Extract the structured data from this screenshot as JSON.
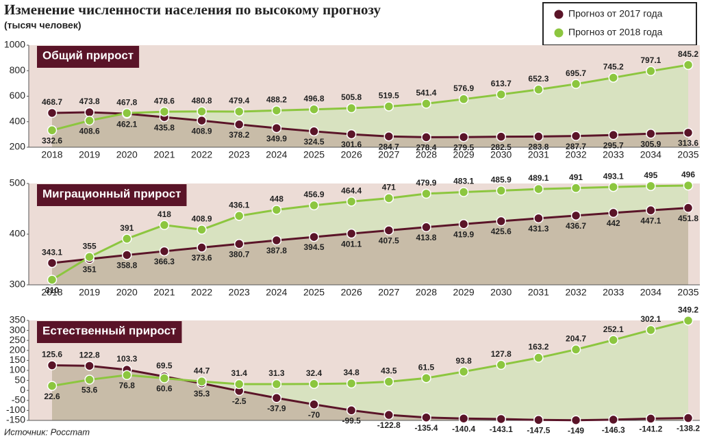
{
  "title": "Изменение численности населения по высокому прогнозу",
  "subtitle": "(тысяч человек)",
  "source": "Источник: Росстат",
  "chart_data": [
    {
      "type": "line",
      "title": "Общий прирост",
      "categories": [
        "2018",
        "2019",
        "2020",
        "2021",
        "2022",
        "2023",
        "2024",
        "2025",
        "2026",
        "2027",
        "2028",
        "2029",
        "2030",
        "2031",
        "2032",
        "2033",
        "2034",
        "2035"
      ],
      "series": [
        {
          "name": "Прогноз от 2017 года",
          "color": "#5a1428",
          "values": [
            468.7,
            473.8,
            462.1,
            435.8,
            408.9,
            378.2,
            349.9,
            324.5,
            301.6,
            284.7,
            278.4,
            279.5,
            282.5,
            283.8,
            287.7,
            295.7,
            305.9,
            313.6
          ]
        },
        {
          "name": "Прогноз от 2018 года",
          "color": "#8cc63f",
          "values": [
            332.6,
            408.6,
            467.8,
            478.6,
            480.8,
            479.4,
            488.2,
            496.8,
            505.8,
            519.5,
            541.4,
            576.9,
            613.7,
            652.3,
            695.7,
            745.2,
            797.1,
            845.2
          ]
        }
      ],
      "ylim": [
        200,
        1000
      ],
      "yticks": [
        200,
        400,
        600,
        800,
        1000
      ]
    },
    {
      "type": "line",
      "title": "Миграционный прирост",
      "categories": [
        "2018",
        "2019",
        "2020",
        "2021",
        "2022",
        "2023",
        "2024",
        "2025",
        "2026",
        "2027",
        "2028",
        "2029",
        "2030",
        "2031",
        "2032",
        "2033",
        "2034",
        "2035"
      ],
      "series": [
        {
          "name": "Прогноз от 2017 года",
          "color": "#5a1428",
          "values": [
            343.1,
            351,
            358.8,
            366.3,
            373.6,
            380.7,
            387.8,
            394.5,
            401.1,
            407.5,
            413.8,
            419.9,
            425.6,
            431.3,
            436.7,
            442,
            447.1,
            451.8
          ]
        },
        {
          "name": "Прогноз от 2018 года",
          "color": "#8cc63f",
          "values": [
            310,
            355,
            391,
            418,
            408.9,
            436.1,
            448,
            456.9,
            464.4,
            471,
            479.9,
            483.1,
            485.9,
            489.1,
            491,
            493.1,
            495,
            496
          ]
        }
      ],
      "ylim": [
        300,
        500
      ],
      "yticks": [
        300,
        400,
        500
      ]
    },
    {
      "type": "line",
      "title": "Естественный прирост",
      "series": [
        {
          "name": "Прогноз от 2017 года",
          "color": "#5a1428",
          "values": [
            125.6,
            122.8,
            103.3,
            69.5,
            35.3,
            -2.5,
            -37.9,
            -70,
            -99.5,
            -122.8,
            -135.4,
            -140.4,
            -143.1,
            -147.5,
            -149,
            -146.3,
            -141.2,
            -138.2
          ]
        },
        {
          "name": "Прогноз от 2018 года",
          "color": "#8cc63f",
          "values": [
            22.6,
            53.6,
            76.8,
            60.6,
            44.7,
            31.4,
            31.3,
            32.4,
            34.8,
            43.5,
            61.5,
            93.8,
            127.8,
            163.2,
            204.7,
            252.1,
            302.1,
            349.2
          ]
        }
      ],
      "ylim": [
        -150,
        350
      ],
      "yticks": [
        -150,
        -100,
        -50,
        0,
        50,
        100,
        150,
        200,
        250,
        300,
        350
      ]
    }
  ]
}
